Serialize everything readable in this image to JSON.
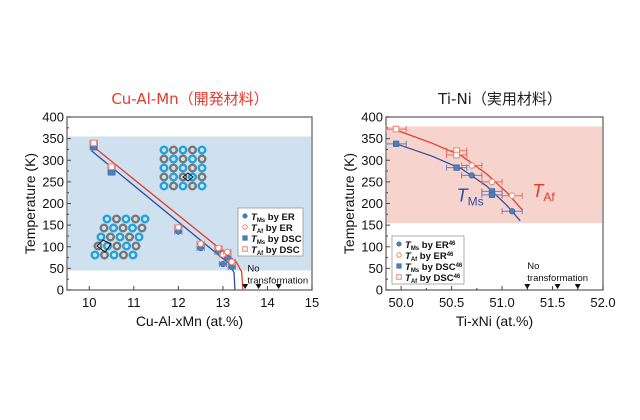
{
  "chart_data": [
    {
      "type": "scatter",
      "title": "Cu-Al-Mn（開発材料）",
      "title_color": "#e8392c",
      "xlabel": "Cu-Al-xMn (at.%)",
      "ylabel": "Temperature (K)",
      "xlim": [
        9.5,
        15
      ],
      "ylim": [
        0,
        400
      ],
      "xticks": [
        10,
        11,
        12,
        13,
        14,
        15
      ],
      "yticks": [
        0,
        50,
        100,
        150,
        200,
        250,
        300,
        350,
        400
      ],
      "shaded_band": {
        "ymin": 45,
        "ymax": 355,
        "color": "#cfe0ee"
      },
      "series": [
        {
          "name": "T_Ms by ER",
          "marker": "circle-filled",
          "color": "#4a7fc0",
          "points": [
            [
              12.0,
              135
            ],
            [
              12.5,
              97
            ],
            [
              12.9,
              88
            ],
            [
              13.0,
              60
            ],
            [
              13.1,
              75
            ],
            [
              13.2,
              53
            ]
          ]
        },
        {
          "name": "T_Af by ER",
          "marker": "circle-open",
          "color": "#e8866c",
          "points": [
            [
              12.0,
              145
            ],
            [
              12.5,
              107
            ],
            [
              12.9,
              97
            ],
            [
              13.0,
              82
            ],
            [
              13.1,
              88
            ],
            [
              13.2,
              65
            ]
          ]
        },
        {
          "name": "T_Ms by DSC",
          "marker": "square-filled",
          "color": "#4a7fc0",
          "points": [
            [
              10.1,
              330
            ],
            [
              10.5,
              272
            ]
          ]
        },
        {
          "name": "T_Af by DSC",
          "marker": "square-open",
          "color": "#e8866c",
          "points": [
            [
              10.1,
              340
            ],
            [
              10.5,
              285
            ]
          ]
        }
      ],
      "fit_lines": [
        {
          "name": "Ms fit",
          "color": "#2e4fa0",
          "points": [
            [
              10.05,
              322
            ],
            [
              13.15,
              60
            ],
            [
              13.25,
              40
            ],
            [
              13.27,
              0
            ]
          ]
        },
        {
          "name": "Af fit",
          "color": "#e8392c",
          "points": [
            [
              10.05,
              335
            ],
            [
              13.3,
              65
            ],
            [
              13.42,
              42
            ],
            [
              13.45,
              0
            ]
          ]
        }
      ],
      "no_transformation_markers": [
        13.5,
        13.8,
        14.25
      ],
      "annotation": [
        "No",
        "transformation"
      ],
      "legend": {
        "placement": "right",
        "entries": [
          {
            "sym": "T",
            "sub": "Ms",
            "text": "by ER",
            "marker": "circle-filled"
          },
          {
            "sym": "T",
            "sub": "Af",
            "text": "by ER",
            "marker": "circle-open"
          },
          {
            "sym": "T",
            "sub": "Ms",
            "text": "by DSC",
            "marker": "square-filled"
          },
          {
            "sym": "T",
            "sub": "Af",
            "text": "by DSC",
            "marker": "square-open"
          }
        ]
      }
    },
    {
      "type": "scatter",
      "title": "Ti-Ni（実用材料）",
      "title_color": "#222222",
      "xlabel": "Ti-xNi (at.%)",
      "ylabel": "Temperature (K)",
      "xlim": [
        49.85,
        52.0
      ],
      "ylim": [
        0,
        400
      ],
      "xticks": [
        50.0,
        50.5,
        51.0,
        51.5,
        52.0
      ],
      "xtick_labels": [
        "50.0",
        "50.5",
        "51.0",
        "51.5",
        "52.0"
      ],
      "yticks": [
        0,
        50,
        100,
        150,
        200,
        250,
        300,
        350,
        400
      ],
      "shaded_band": {
        "ymin": 155,
        "ymax": 378,
        "color": "#f6d3cc"
      },
      "series": [
        {
          "name": "T_Ms by ER46",
          "marker": "circle-filled",
          "color": "#4a7fc0",
          "points": [
            [
              50.7,
              265
            ],
            [
              51.1,
              182
            ]
          ]
        },
        {
          "name": "T_Af by ER46",
          "marker": "circle-open",
          "color": "#e8866c",
          "points": [
            [
              50.7,
              288
            ],
            [
              50.9,
              250
            ],
            [
              51.1,
              218
            ]
          ]
        },
        {
          "name": "T_Ms by DSC46",
          "marker": "square-filled",
          "color": "#4a7fc0",
          "points": [
            [
              49.95,
              338
            ],
            [
              50.55,
              283
            ],
            [
              50.9,
              228
            ],
            [
              50.9,
              220
            ]
          ]
        },
        {
          "name": "T_Af by DSC46",
          "marker": "square-open",
          "color": "#e8866c",
          "points": [
            [
              49.95,
              372
            ],
            [
              50.55,
              322
            ],
            [
              50.55,
              312
            ]
          ]
        }
      ],
      "fit_lines": [
        {
          "name": "Ms fit",
          "color": "#2e4fa0",
          "points": [
            [
              49.95,
              338
            ],
            [
              50.3,
              310
            ],
            [
              50.6,
              280
            ],
            [
              50.85,
              240
            ],
            [
              51.05,
              195
            ],
            [
              51.18,
              160
            ]
          ]
        },
        {
          "name": "Af fit",
          "color": "#e8392c",
          "points": [
            [
              49.95,
              370
            ],
            [
              50.3,
              340
            ],
            [
              50.6,
              310
            ],
            [
              50.85,
              268
            ],
            [
              51.05,
              225
            ],
            [
              51.2,
              185
            ]
          ]
        }
      ],
      "curve_labels": [
        {
          "sym": "T",
          "sub": "Ms",
          "color": "#2e4fa0",
          "x": 50.55,
          "y": 205
        },
        {
          "sym": "T",
          "sub": "Af",
          "color": "#e8392c",
          "x": 51.3,
          "y": 215
        }
      ],
      "no_transformation_markers": [
        51.25,
        51.55,
        51.75
      ],
      "annotation": [
        "No",
        "transformation"
      ],
      "legend": {
        "placement": "bottom-left",
        "entries": [
          {
            "sym": "T",
            "sub": "Ms",
            "text": "by ER",
            "sup": "46",
            "marker": "circle-filled"
          },
          {
            "sym": "T",
            "sub": "Af",
            "text": "by ER",
            "sup": "46",
            "marker": "circle-open"
          },
          {
            "sym": "T",
            "sub": "Ms",
            "text": "by DSC",
            "sup": "46",
            "marker": "square-filled"
          },
          {
            "sym": "T",
            "sub": "Af",
            "text": "by DSC",
            "sup": "46",
            "marker": "square-open"
          }
        ]
      }
    }
  ]
}
